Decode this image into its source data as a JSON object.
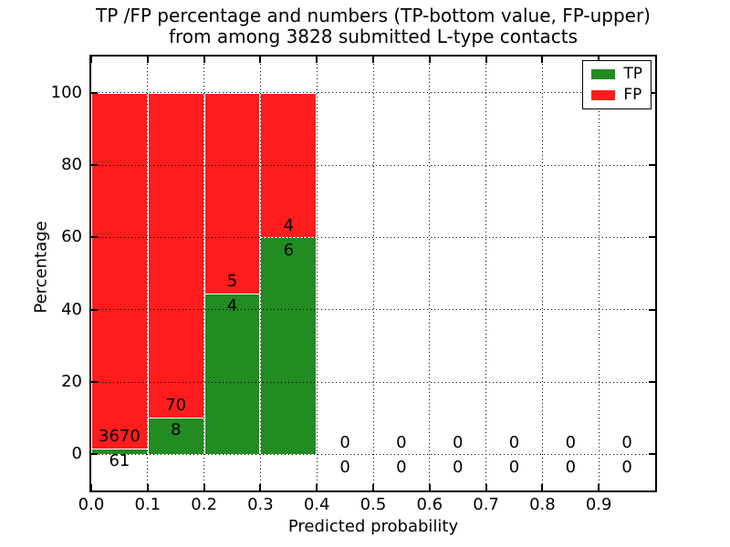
{
  "chart_data": {
    "type": "bar",
    "stacked": true,
    "title_lines": [
      "TP /FP percentage and numbers (TP-bottom value, FP-upper)",
      "from among 3828 submitted L-type contacts"
    ],
    "total_submitted": 3828,
    "xlabel": "Predicted probability",
    "ylabel": "Percentage",
    "xlim": [
      0.0,
      1.0
    ],
    "ylim": [
      -10,
      110
    ],
    "yticks": [
      0,
      20,
      40,
      60,
      80,
      100
    ],
    "xticks": [
      0.0,
      0.1,
      0.2,
      0.3,
      0.4,
      0.5,
      0.6,
      0.7,
      0.8,
      0.9
    ],
    "xtick_labels": [
      "0.0",
      "0.1",
      "0.2",
      "0.3",
      "0.4",
      "0.5",
      "0.6",
      "0.7",
      "0.8",
      "0.9"
    ],
    "grid": {
      "visible": true,
      "style": "dotted",
      "color": "#000000"
    },
    "bin_width": 0.1,
    "bins": [
      {
        "range": [
          0.0,
          0.1
        ],
        "tp_count": 61,
        "fp_count": 3670,
        "tp_percent": 1.6,
        "fp_percent": 98.4
      },
      {
        "range": [
          0.1,
          0.2
        ],
        "tp_count": 8,
        "fp_count": 70,
        "tp_percent": 10.3,
        "fp_percent": 89.7
      },
      {
        "range": [
          0.2,
          0.3
        ],
        "tp_count": 4,
        "fp_count": 5,
        "tp_percent": 44.4,
        "fp_percent": 55.6
      },
      {
        "range": [
          0.3,
          0.4
        ],
        "tp_count": 6,
        "fp_count": 4,
        "tp_percent": 60.0,
        "fp_percent": 40.0
      },
      {
        "range": [
          0.4,
          0.5
        ],
        "tp_count": 0,
        "fp_count": 0,
        "tp_percent": 0,
        "fp_percent": 0
      },
      {
        "range": [
          0.5,
          0.6
        ],
        "tp_count": 0,
        "fp_count": 0,
        "tp_percent": 0,
        "fp_percent": 0
      },
      {
        "range": [
          0.6,
          0.7
        ],
        "tp_count": 0,
        "fp_count": 0,
        "tp_percent": 0,
        "fp_percent": 0
      },
      {
        "range": [
          0.7,
          0.8
        ],
        "tp_count": 0,
        "fp_count": 0,
        "tp_percent": 0,
        "fp_percent": 0
      },
      {
        "range": [
          0.8,
          0.9
        ],
        "tp_count": 0,
        "fp_count": 0,
        "tp_percent": 0,
        "fp_percent": 0
      },
      {
        "range": [
          0.9,
          1.0
        ],
        "tp_count": 0,
        "fp_count": 0,
        "tp_percent": 0,
        "fp_percent": 0
      }
    ],
    "series_colors": {
      "tp": "#228b22",
      "fp": "#ff1c1c"
    },
    "legend": {
      "position": "upper-right",
      "entries": [
        {
          "label": "TP",
          "color": "#228b22"
        },
        {
          "label": "FP",
          "color": "#ff1c1c"
        }
      ]
    }
  }
}
